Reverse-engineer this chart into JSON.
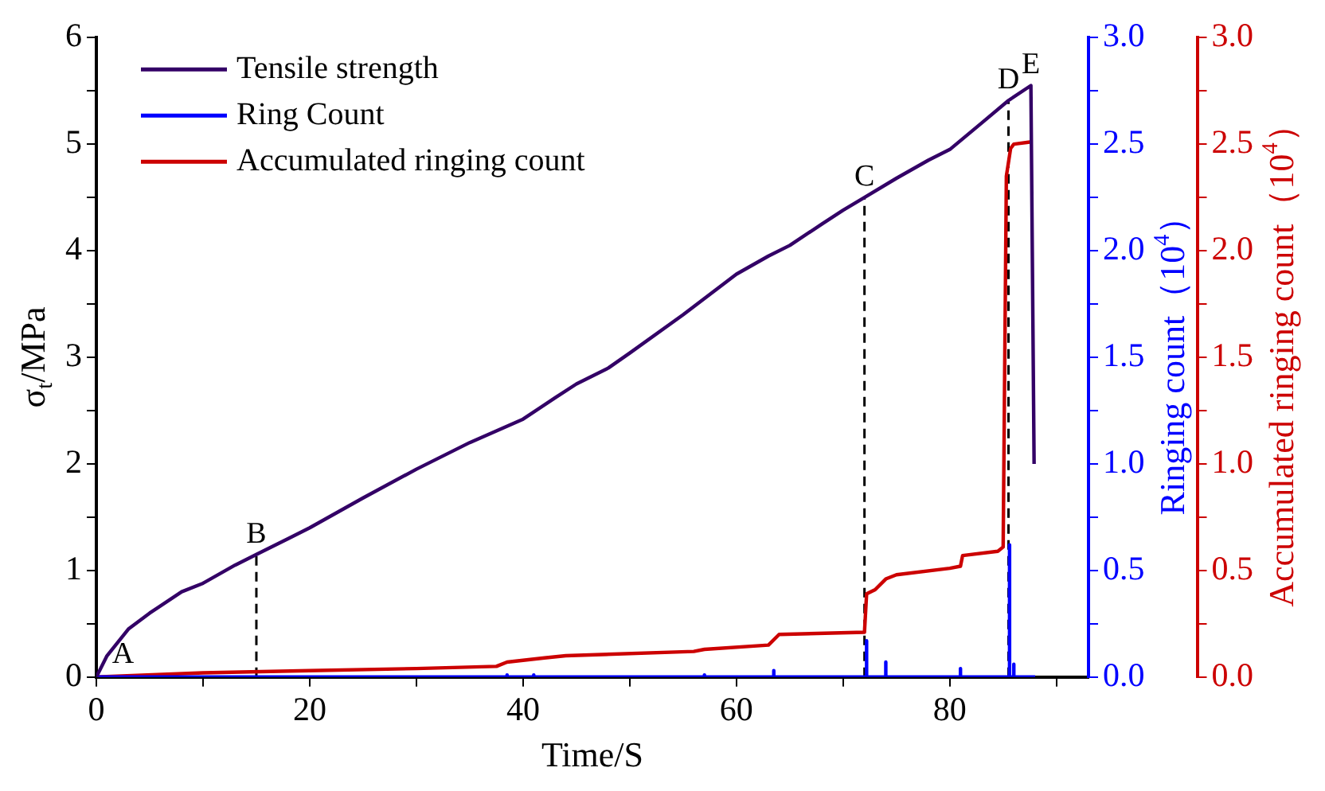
{
  "chart_data": {
    "type": "line",
    "xlabel": "Time/S",
    "ylabel": "σ$_{t}$/MPa",
    "y2label": "Ringing count（10$^{4}$）",
    "y3label": "Accumulated ringing count（10$^{4}$）",
    "xlim": [
      0,
      93
    ],
    "xticks": [
      0,
      {
        "value": 10,
        "label": null
      },
      20,
      {
        "value": 30,
        "label": null
      },
      40,
      {
        "value": 50,
        "label": null
      },
      60,
      {
        "value": 70,
        "label": null
      },
      80,
      {
        "value": 90,
        "label": null
      }
    ],
    "ylim": [
      0,
      6
    ],
    "yticks": [
      0,
      {
        "value": 0.5,
        "label": null
      },
      1,
      {
        "value": 1.5,
        "label": null
      },
      2,
      {
        "value": 2.5,
        "label": null
      },
      3,
      {
        "value": 3.5,
        "label": null
      },
      4,
      {
        "value": 4.5,
        "label": null
      },
      5,
      {
        "value": 5.5,
        "label": null
      },
      6
    ],
    "y2lim": [
      0,
      3
    ],
    "y2ticks": [
      {
        "value": 0,
        "label": "0.0"
      },
      {
        "value": 0.25,
        "label": null
      },
      {
        "value": 0.5,
        "label": "0.5"
      },
      {
        "value": 0.75,
        "label": null
      },
      {
        "value": 1,
        "label": "1.0"
      },
      {
        "value": 1.25,
        "label": null
      },
      {
        "value": 1.5,
        "label": "1.5"
      },
      {
        "value": 1.75,
        "label": null
      },
      {
        "value": 2,
        "label": "2.0"
      },
      {
        "value": 2.25,
        "label": null
      },
      {
        "value": 2.5,
        "label": "2.5"
      },
      {
        "value": 2.75,
        "label": null
      },
      {
        "value": 3,
        "label": "3.0"
      }
    ],
    "y3lim": [
      0,
      3
    ],
    "y3ticks": [
      {
        "value": 0,
        "label": "0.0"
      },
      {
        "value": 0.25,
        "label": null
      },
      {
        "value": 0.5,
        "label": "0.5"
      },
      {
        "value": 0.75,
        "label": null
      },
      {
        "value": 1,
        "label": "1.0"
      },
      {
        "value": 1.25,
        "label": null
      },
      {
        "value": 1.5,
        "label": "1.5"
      },
      {
        "value": 1.75,
        "label": null
      },
      {
        "value": 2,
        "label": "2.0"
      },
      {
        "value": 2.25,
        "label": null
      },
      {
        "value": 2.5,
        "label": "2.5"
      },
      {
        "value": 2.75,
        "label": null
      },
      {
        "value": 3,
        "label": "3.0"
      }
    ],
    "grid": false,
    "legend": "top left",
    "marker": "none",
    "line_style": "solid",
    "series": [
      {
        "name": "Tensile strength",
        "color": "#330066",
        "x": [
          0,
          1,
          3,
          5,
          8,
          10,
          13,
          15,
          18,
          20,
          25,
          30,
          35,
          40,
          43,
          45,
          48,
          50,
          55,
          60,
          63,
          65,
          68,
          70,
          72,
          75,
          78,
          80,
          83,
          85.5,
          87.6,
          87.9
        ],
        "values": [
          0,
          0.2,
          0.45,
          0.6,
          0.8,
          0.88,
          1.05,
          1.15,
          1.3,
          1.4,
          1.68,
          1.95,
          2.2,
          2.42,
          2.62,
          2.75,
          2.9,
          3.04,
          3.4,
          3.78,
          3.95,
          4.05,
          4.25,
          4.38,
          4.5,
          4.68,
          4.85,
          4.95,
          5.2,
          5.41,
          5.55,
          2.0
        ]
      },
      {
        "name": "Ring Count",
        "color": "#0000ff",
        "axis": "y2",
        "x": [
          0,
          38.5,
          38.5,
          38.5,
          41,
          41,
          41,
          57,
          57,
          57,
          63.5,
          63.5,
          63.5,
          72.2,
          72.2,
          72.2,
          74,
          74,
          74,
          81,
          81,
          81,
          85.6,
          85.6,
          85.6,
          86,
          86,
          86,
          88
        ],
        "values": [
          0,
          0,
          0.01,
          0,
          0,
          0.01,
          0,
          0,
          0.01,
          0,
          0,
          0.03,
          0,
          0,
          0.17,
          0,
          0,
          0.07,
          0,
          0,
          0.04,
          0,
          0,
          0.62,
          0,
          0,
          0.06,
          0,
          0
        ]
      },
      {
        "name": "Accumulated ringing count",
        "color": "#cc0000",
        "axis": "y3",
        "x": [
          0,
          10,
          20,
          30,
          37.5,
          38.5,
          42,
          44,
          56,
          57,
          63,
          64,
          72,
          72.2,
          73,
          74,
          75,
          80,
          81,
          81.2,
          84.5,
          85,
          85.3,
          85.7,
          86,
          87.5
        ],
        "values": [
          0,
          0.02,
          0.03,
          0.04,
          0.05,
          0.07,
          0.09,
          0.1,
          0.12,
          0.13,
          0.15,
          0.2,
          0.21,
          0.39,
          0.41,
          0.46,
          0.48,
          0.51,
          0.52,
          0.57,
          0.59,
          0.61,
          2.35,
          2.48,
          2.5,
          2.51
        ]
      },
      {
        "color": "#000000",
        "line_style": "dashed",
        "x": [
          15,
          15
        ],
        "values": [
          0,
          1.15
        ]
      },
      {
        "color": "#000000",
        "line_style": "dashed",
        "x": [
          72,
          72
        ],
        "values": [
          0,
          4.5
        ]
      },
      {
        "color": "#000000",
        "line_style": "dashed",
        "x": [
          85.5,
          85.5
        ],
        "values": [
          0,
          5.41
        ]
      }
    ],
    "annotations": [
      {
        "text": "A",
        "x": 2.5,
        "y": 0.02
      },
      {
        "text": "B",
        "x": 15,
        "y": 1.15
      },
      {
        "text": "C",
        "x": 72,
        "y": 4.5
      },
      {
        "text": "D",
        "x": 85.5,
        "y": 5.41
      },
      {
        "text": "E",
        "x": 87.6,
        "y": 5.55
      }
    ]
  }
}
